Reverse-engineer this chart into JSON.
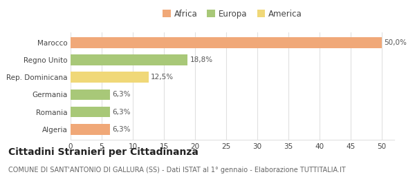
{
  "categories": [
    "Algeria",
    "Romania",
    "Germania",
    "Rep. Dominicana",
    "Regno Unito",
    "Marocco"
  ],
  "values": [
    6.3,
    6.3,
    6.3,
    12.5,
    18.8,
    50.0
  ],
  "bar_colors": [
    "#f0a878",
    "#a8c878",
    "#a8c878",
    "#f0d878",
    "#a8c878",
    "#f0a878"
  ],
  "labels": [
    "6,3%",
    "6,3%",
    "6,3%",
    "12,5%",
    "18,8%",
    "50,0%"
  ],
  "legend": [
    {
      "label": "Africa",
      "color": "#f0a878"
    },
    {
      "label": "Europa",
      "color": "#a8c878"
    },
    {
      "label": "America",
      "color": "#f0d878"
    }
  ],
  "xlim": [
    0,
    52
  ],
  "xticks": [
    0,
    5,
    10,
    15,
    20,
    25,
    30,
    35,
    40,
    45,
    50
  ],
  "title": "Cittadini Stranieri per Cittadinanza",
  "subtitle": "COMUNE DI SANT'ANTONIO DI GALLURA (SS) - Dati ISTAT al 1° gennaio - Elaborazione TUTTITALIA.IT",
  "background_color": "#ffffff",
  "grid_color": "#e0e0e0",
  "bar_height": 0.62,
  "title_fontsize": 10,
  "subtitle_fontsize": 7,
  "label_fontsize": 7.5,
  "tick_fontsize": 7.5,
  "legend_fontsize": 8.5
}
